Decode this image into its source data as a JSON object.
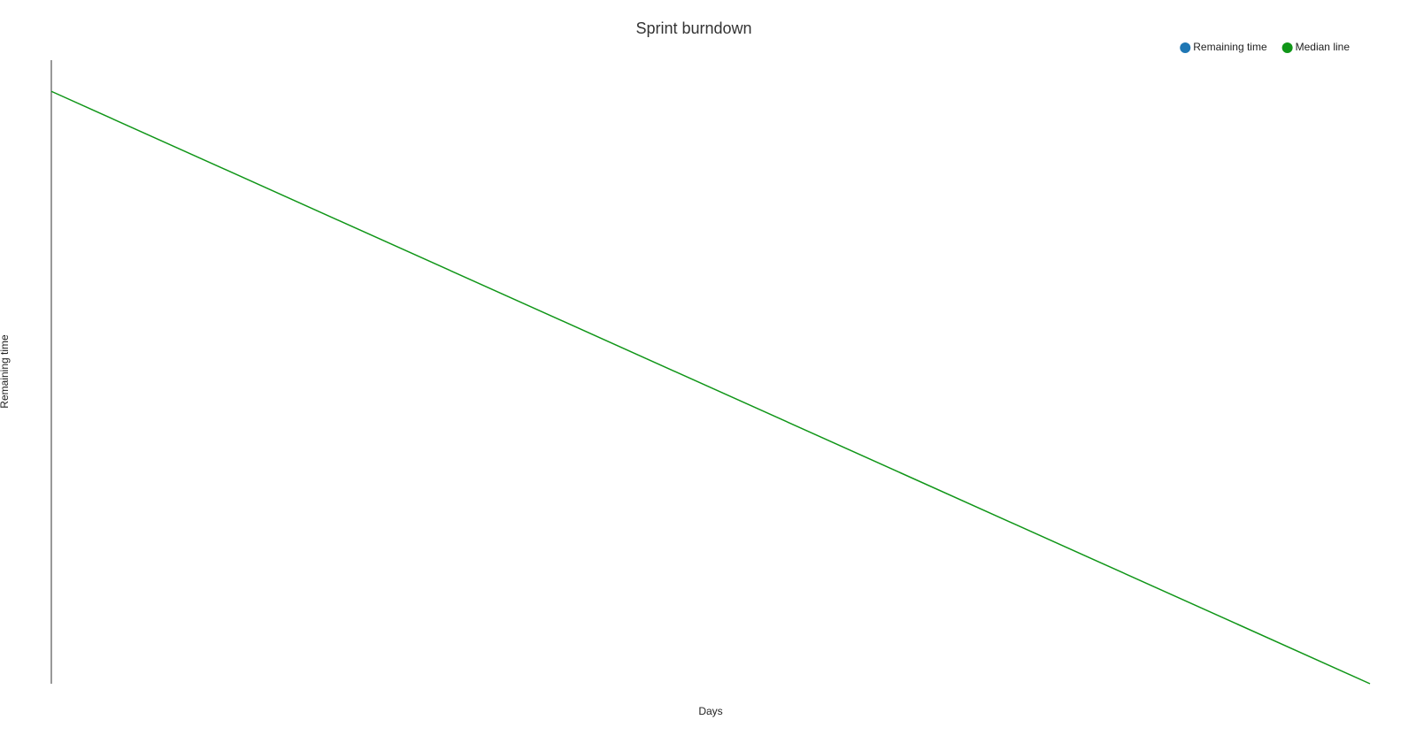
{
  "chart_data": {
    "type": "line",
    "title": "Sprint burndown",
    "xlabel": "Days",
    "ylabel": "Remaining time",
    "x": [
      0,
      10
    ],
    "xlim": [
      0,
      10
    ],
    "ylim": [
      0,
      100
    ],
    "legend": "top-right",
    "series": [
      {
        "name": "Remaining time",
        "color": "#1f77b4",
        "values": [
          null,
          null
        ]
      },
      {
        "name": "Median line",
        "color": "#109618",
        "values": [
          95,
          0
        ]
      }
    ]
  }
}
